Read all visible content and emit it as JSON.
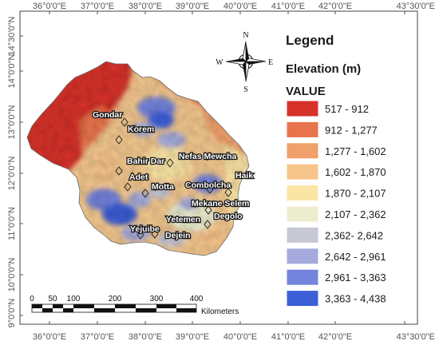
{
  "axes": {
    "top_ticks": [
      "36°0'0\"E",
      "37°0'0\"E",
      "38°0'0\"E",
      "39°0'0\"E",
      "40°0'0\"E",
      "41°0'0\"E",
      "42°0'0\"E",
      "43°30'0\"E"
    ],
    "bottom_ticks": [
      "36°0'0\"E",
      "37°0'0\"E",
      "38°0'0\"E",
      "39°0'0\"E",
      "40°0'0\"E",
      "41°0'0\"E",
      "42°0'0\"E",
      "43°30'0\"E"
    ],
    "left_ticks": [
      "14°30'0\"N",
      "14°0'0\"N",
      "13°0'0\"N",
      "12°0'0\"N",
      "11°0'0\"N",
      "10°0'0\"N",
      "9°0'0\"N"
    ]
  },
  "legend": {
    "title": "Legend",
    "subtitle": "Elevation (m)",
    "field": "VALUE",
    "classes": [
      {
        "label": "517 - 912",
        "color": "#d7322a"
      },
      {
        "label": "912 - 1,277",
        "color": "#e8744d"
      },
      {
        "label": "1,277 - 1,602",
        "color": "#f0a06a"
      },
      {
        "label": "1,602 - 1,870",
        "color": "#f6c48b"
      },
      {
        "label": "1,870 - 2,107",
        "color": "#fbe5a5"
      },
      {
        "label": "2,107 - 2,362",
        "color": "#ecedcf"
      },
      {
        "label": "2,362- 2,642",
        "color": "#c6c8d4"
      },
      {
        "label": "2,642 - 2,961",
        "color": "#a4abdc"
      },
      {
        "label": "2,961 - 3,363",
        "color": "#7484dc"
      },
      {
        "label": "3,363 - 4,438",
        "color": "#3c5fd8"
      }
    ]
  },
  "compass": {
    "n": "N",
    "s": "S",
    "e": "E",
    "w": "W"
  },
  "scale_bar": {
    "ticks": [
      "0",
      "50",
      "100",
      "200",
      "300",
      "400"
    ],
    "unit": "Kilometers"
  },
  "stations": [
    {
      "name": "Gondar"
    },
    {
      "name": "Korem"
    },
    {
      "name": "Bahir Dar"
    },
    {
      "name": "Nefas Mewcha"
    },
    {
      "name": "Adet"
    },
    {
      "name": "Haik"
    },
    {
      "name": "Motta"
    },
    {
      "name": "Combolcha"
    },
    {
      "name": "Mekane Selem"
    },
    {
      "name": "Yetemen"
    },
    {
      "name": "Degolo"
    },
    {
      "name": "Yejuibe"
    },
    {
      "name": "Dejein"
    }
  ]
}
